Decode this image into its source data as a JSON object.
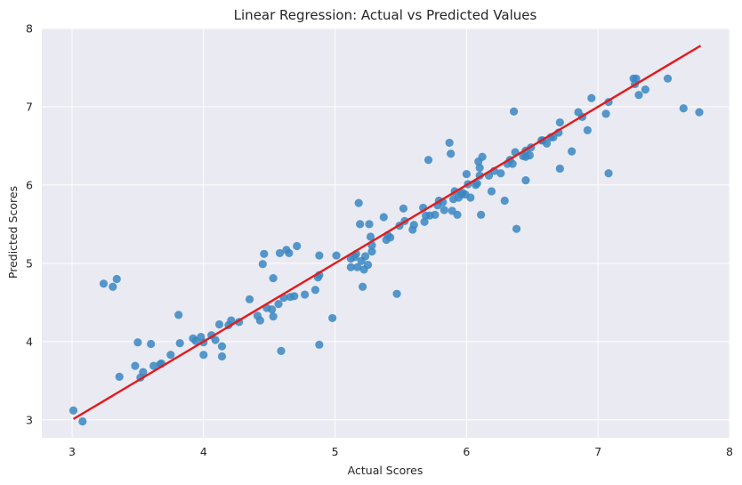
{
  "chart_data": {
    "type": "scatter",
    "title": "Linear Regression: Actual vs Predicted Values",
    "xlabel": "Actual Scores",
    "ylabel": "Predicted Scores",
    "xlim": [
      2.77,
      8.0
    ],
    "ylim": [
      2.77,
      8.0
    ],
    "xticks": [
      "3",
      "4",
      "5",
      "6",
      "7",
      "8"
    ],
    "yticks": [
      "3",
      "4",
      "5",
      "6",
      "7",
      "8"
    ],
    "grid": true,
    "legend": "none",
    "colors": {
      "background": "#eaeaf2",
      "grid": "#ffffff",
      "points": "#3a87c2",
      "fit_line": "#e41a1c"
    },
    "regression_line": {
      "x": [
        3.01,
        7.78
      ],
      "y": [
        3.01,
        7.78
      ]
    },
    "points": [
      [
        3.01,
        3.12
      ],
      [
        3.08,
        2.98
      ],
      [
        3.24,
        4.74
      ],
      [
        3.31,
        4.7
      ],
      [
        3.34,
        4.8
      ],
      [
        3.36,
        3.55
      ],
      [
        3.48,
        3.69
      ],
      [
        3.5,
        3.99
      ],
      [
        3.52,
        3.54
      ],
      [
        3.54,
        3.61
      ],
      [
        3.6,
        3.97
      ],
      [
        3.62,
        3.69
      ],
      [
        3.67,
        3.71
      ],
      [
        3.68,
        3.72
      ],
      [
        3.75,
        3.83
      ],
      [
        3.81,
        4.34
      ],
      [
        3.82,
        3.98
      ],
      [
        3.92,
        4.04
      ],
      [
        3.94,
        4.01
      ],
      [
        3.98,
        4.06
      ],
      [
        4.0,
        3.83
      ],
      [
        4.0,
        3.99
      ],
      [
        4.06,
        4.08
      ],
      [
        4.09,
        4.02
      ],
      [
        4.12,
        4.22
      ],
      [
        4.14,
        3.81
      ],
      [
        4.14,
        3.94
      ],
      [
        4.19,
        4.21
      ],
      [
        4.21,
        4.27
      ],
      [
        4.27,
        4.25
      ],
      [
        4.35,
        4.54
      ],
      [
        4.41,
        4.33
      ],
      [
        4.43,
        4.27
      ],
      [
        4.45,
        4.99
      ],
      [
        4.46,
        5.12
      ],
      [
        4.48,
        4.43
      ],
      [
        4.52,
        4.41
      ],
      [
        4.53,
        4.32
      ],
      [
        4.53,
        4.81
      ],
      [
        4.57,
        4.48
      ],
      [
        4.58,
        5.13
      ],
      [
        4.59,
        3.88
      ],
      [
        4.61,
        4.56
      ],
      [
        4.63,
        5.17
      ],
      [
        4.65,
        5.13
      ],
      [
        4.66,
        4.57
      ],
      [
        4.69,
        4.58
      ],
      [
        4.71,
        5.22
      ],
      [
        4.77,
        4.6
      ],
      [
        4.85,
        4.66
      ],
      [
        4.87,
        4.82
      ],
      [
        4.88,
        4.85
      ],
      [
        4.88,
        5.1
      ],
      [
        4.88,
        3.96
      ],
      [
        4.98,
        4.3
      ],
      [
        5.01,
        5.1
      ],
      [
        5.12,
        5.06
      ],
      [
        5.12,
        4.95
      ],
      [
        5.15,
        5.08
      ],
      [
        5.16,
        5.12
      ],
      [
        5.17,
        4.95
      ],
      [
        5.18,
        5.77
      ],
      [
        5.19,
        5.5
      ],
      [
        5.2,
        5.03
      ],
      [
        5.21,
        4.7
      ],
      [
        5.22,
        4.92
      ],
      [
        5.23,
        5.09
      ],
      [
        5.25,
        4.98
      ],
      [
        5.26,
        5.5
      ],
      [
        5.27,
        5.34
      ],
      [
        5.28,
        5.15
      ],
      [
        5.28,
        5.23
      ],
      [
        5.37,
        5.59
      ],
      [
        5.39,
        5.3
      ],
      [
        5.4,
        5.36
      ],
      [
        5.42,
        5.33
      ],
      [
        5.47,
        4.61
      ],
      [
        5.49,
        5.48
      ],
      [
        5.52,
        5.7
      ],
      [
        5.53,
        5.54
      ],
      [
        5.59,
        5.43
      ],
      [
        5.6,
        5.49
      ],
      [
        5.67,
        5.71
      ],
      [
        5.68,
        5.53
      ],
      [
        5.69,
        5.61
      ],
      [
        5.71,
        6.32
      ],
      [
        5.72,
        5.61
      ],
      [
        5.76,
        5.62
      ],
      [
        5.78,
        5.74
      ],
      [
        5.79,
        5.8
      ],
      [
        5.82,
        5.78
      ],
      [
        5.83,
        5.68
      ],
      [
        5.87,
        6.54
      ],
      [
        5.88,
        6.4
      ],
      [
        5.89,
        5.67
      ],
      [
        5.9,
        5.82
      ],
      [
        5.91,
        5.92
      ],
      [
        5.93,
        5.62
      ],
      [
        5.94,
        5.84
      ],
      [
        5.96,
        5.88
      ],
      [
        5.97,
        5.9
      ],
      [
        5.99,
        5.88
      ],
      [
        6.0,
        6.14
      ],
      [
        6.01,
        6.01
      ],
      [
        6.03,
        5.84
      ],
      [
        6.07,
        6.0
      ],
      [
        6.08,
        6.02
      ],
      [
        6.09,
        6.3
      ],
      [
        6.1,
        6.22
      ],
      [
        6.1,
        6.12
      ],
      [
        6.11,
        5.62
      ],
      [
        6.12,
        6.36
      ],
      [
        6.17,
        6.12
      ],
      [
        6.19,
        5.92
      ],
      [
        6.21,
        6.18
      ],
      [
        6.26,
        6.15
      ],
      [
        6.29,
        5.8
      ],
      [
        6.31,
        6.27
      ],
      [
        6.33,
        6.32
      ],
      [
        6.35,
        6.27
      ],
      [
        6.36,
        6.94
      ],
      [
        6.37,
        6.42
      ],
      [
        6.38,
        5.44
      ],
      [
        6.43,
        6.37
      ],
      [
        6.45,
        6.36
      ],
      [
        6.45,
        6.06
      ],
      [
        6.45,
        6.44
      ],
      [
        6.48,
        6.38
      ],
      [
        6.49,
        6.48
      ],
      [
        6.57,
        6.57
      ],
      [
        6.58,
        6.57
      ],
      [
        6.61,
        6.53
      ],
      [
        6.64,
        6.61
      ],
      [
        6.66,
        6.61
      ],
      [
        6.7,
        6.67
      ],
      [
        6.71,
        6.8
      ],
      [
        6.71,
        6.21
      ],
      [
        6.8,
        6.43
      ],
      [
        6.85,
        6.93
      ],
      [
        6.88,
        6.87
      ],
      [
        6.92,
        6.7
      ],
      [
        6.95,
        7.11
      ],
      [
        7.06,
        6.91
      ],
      [
        7.08,
        6.15
      ],
      [
        7.08,
        7.06
      ],
      [
        7.27,
        7.36
      ],
      [
        7.28,
        7.29
      ],
      [
        7.29,
        7.36
      ],
      [
        7.31,
        7.15
      ],
      [
        7.36,
        7.22
      ],
      [
        7.53,
        7.36
      ],
      [
        7.65,
        6.98
      ],
      [
        7.77,
        6.93
      ]
    ]
  }
}
